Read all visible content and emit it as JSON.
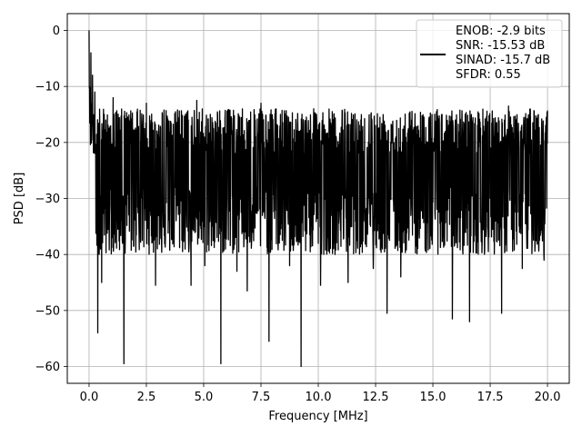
{
  "chart_data": {
    "type": "line",
    "xlabel": "Frequency [MHz]",
    "ylabel": "PSD [dB]",
    "xlim": [
      -0.95,
      20.95
    ],
    "ylim": [
      -63,
      3
    ],
    "x_ticks": [
      0,
      2.5,
      5,
      7.5,
      10,
      12.5,
      15,
      17.5,
      20
    ],
    "x_tick_labels": [
      "0.0",
      "2.5",
      "5.0",
      "7.5",
      "10.0",
      "12.5",
      "15.0",
      "17.5",
      "20.0"
    ],
    "y_ticks": [
      0,
      -10,
      -20,
      -30,
      -40,
      -50,
      -60
    ],
    "y_tick_labels": [
      "0",
      "−10",
      "−20",
      "−30",
      "−40",
      "−50",
      "−60"
    ],
    "grid": true,
    "legend_position": "top-right",
    "legend_lines": [
      "ENOB: -2.9 bits",
      "SNR: -15.53 dB",
      "SINAD: -15.7 dB",
      "SFDR: 0.55"
    ],
    "line_color": "#000000",
    "series": [
      {
        "x_range": [
          0,
          20
        ],
        "peak": {
          "x": 0.0,
          "y": 0
        },
        "typical_upper_envelope": -14,
        "typical_lower_envelope": -35,
        "noise_floor_mean": -26,
        "dips": [
          {
            "x": 0.38,
            "y": -54
          },
          {
            "x": 0.55,
            "y": -45
          },
          {
            "x": 1.52,
            "y": -59.5
          },
          {
            "x": 2.9,
            "y": -45.5
          },
          {
            "x": 4.45,
            "y": -45.5
          },
          {
            "x": 5.05,
            "y": -42
          },
          {
            "x": 5.75,
            "y": -59.5
          },
          {
            "x": 6.45,
            "y": -43
          },
          {
            "x": 6.9,
            "y": -46.5
          },
          {
            "x": 7.85,
            "y": -55.5
          },
          {
            "x": 8.75,
            "y": -42
          },
          {
            "x": 9.25,
            "y": -60
          },
          {
            "x": 10.1,
            "y": -45.5
          },
          {
            "x": 11.3,
            "y": -45
          },
          {
            "x": 12.4,
            "y": -42.5
          },
          {
            "x": 13.0,
            "y": -50.5
          },
          {
            "x": 13.6,
            "y": -44
          },
          {
            "x": 15.85,
            "y": -51.5
          },
          {
            "x": 16.6,
            "y": -52
          },
          {
            "x": 18.0,
            "y": -50.5
          },
          {
            "x": 18.9,
            "y": -42.5
          },
          {
            "x": 19.85,
            "y": -41
          }
        ],
        "spikes": [
          {
            "x": 0.08,
            "y": -4
          },
          {
            "x": 0.15,
            "y": -8
          },
          {
            "x": 0.25,
            "y": -11
          },
          {
            "x": 1.05,
            "y": -12
          },
          {
            "x": 2.5,
            "y": -13
          },
          {
            "x": 4.7,
            "y": -12.5
          },
          {
            "x": 7.5,
            "y": -13
          },
          {
            "x": 9.8,
            "y": -14
          },
          {
            "x": 12.3,
            "y": -15
          },
          {
            "x": 15.4,
            "y": -15
          },
          {
            "x": 18.3,
            "y": -13.5
          },
          {
            "x": 19.95,
            "y": -15.5
          }
        ]
      }
    ]
  }
}
